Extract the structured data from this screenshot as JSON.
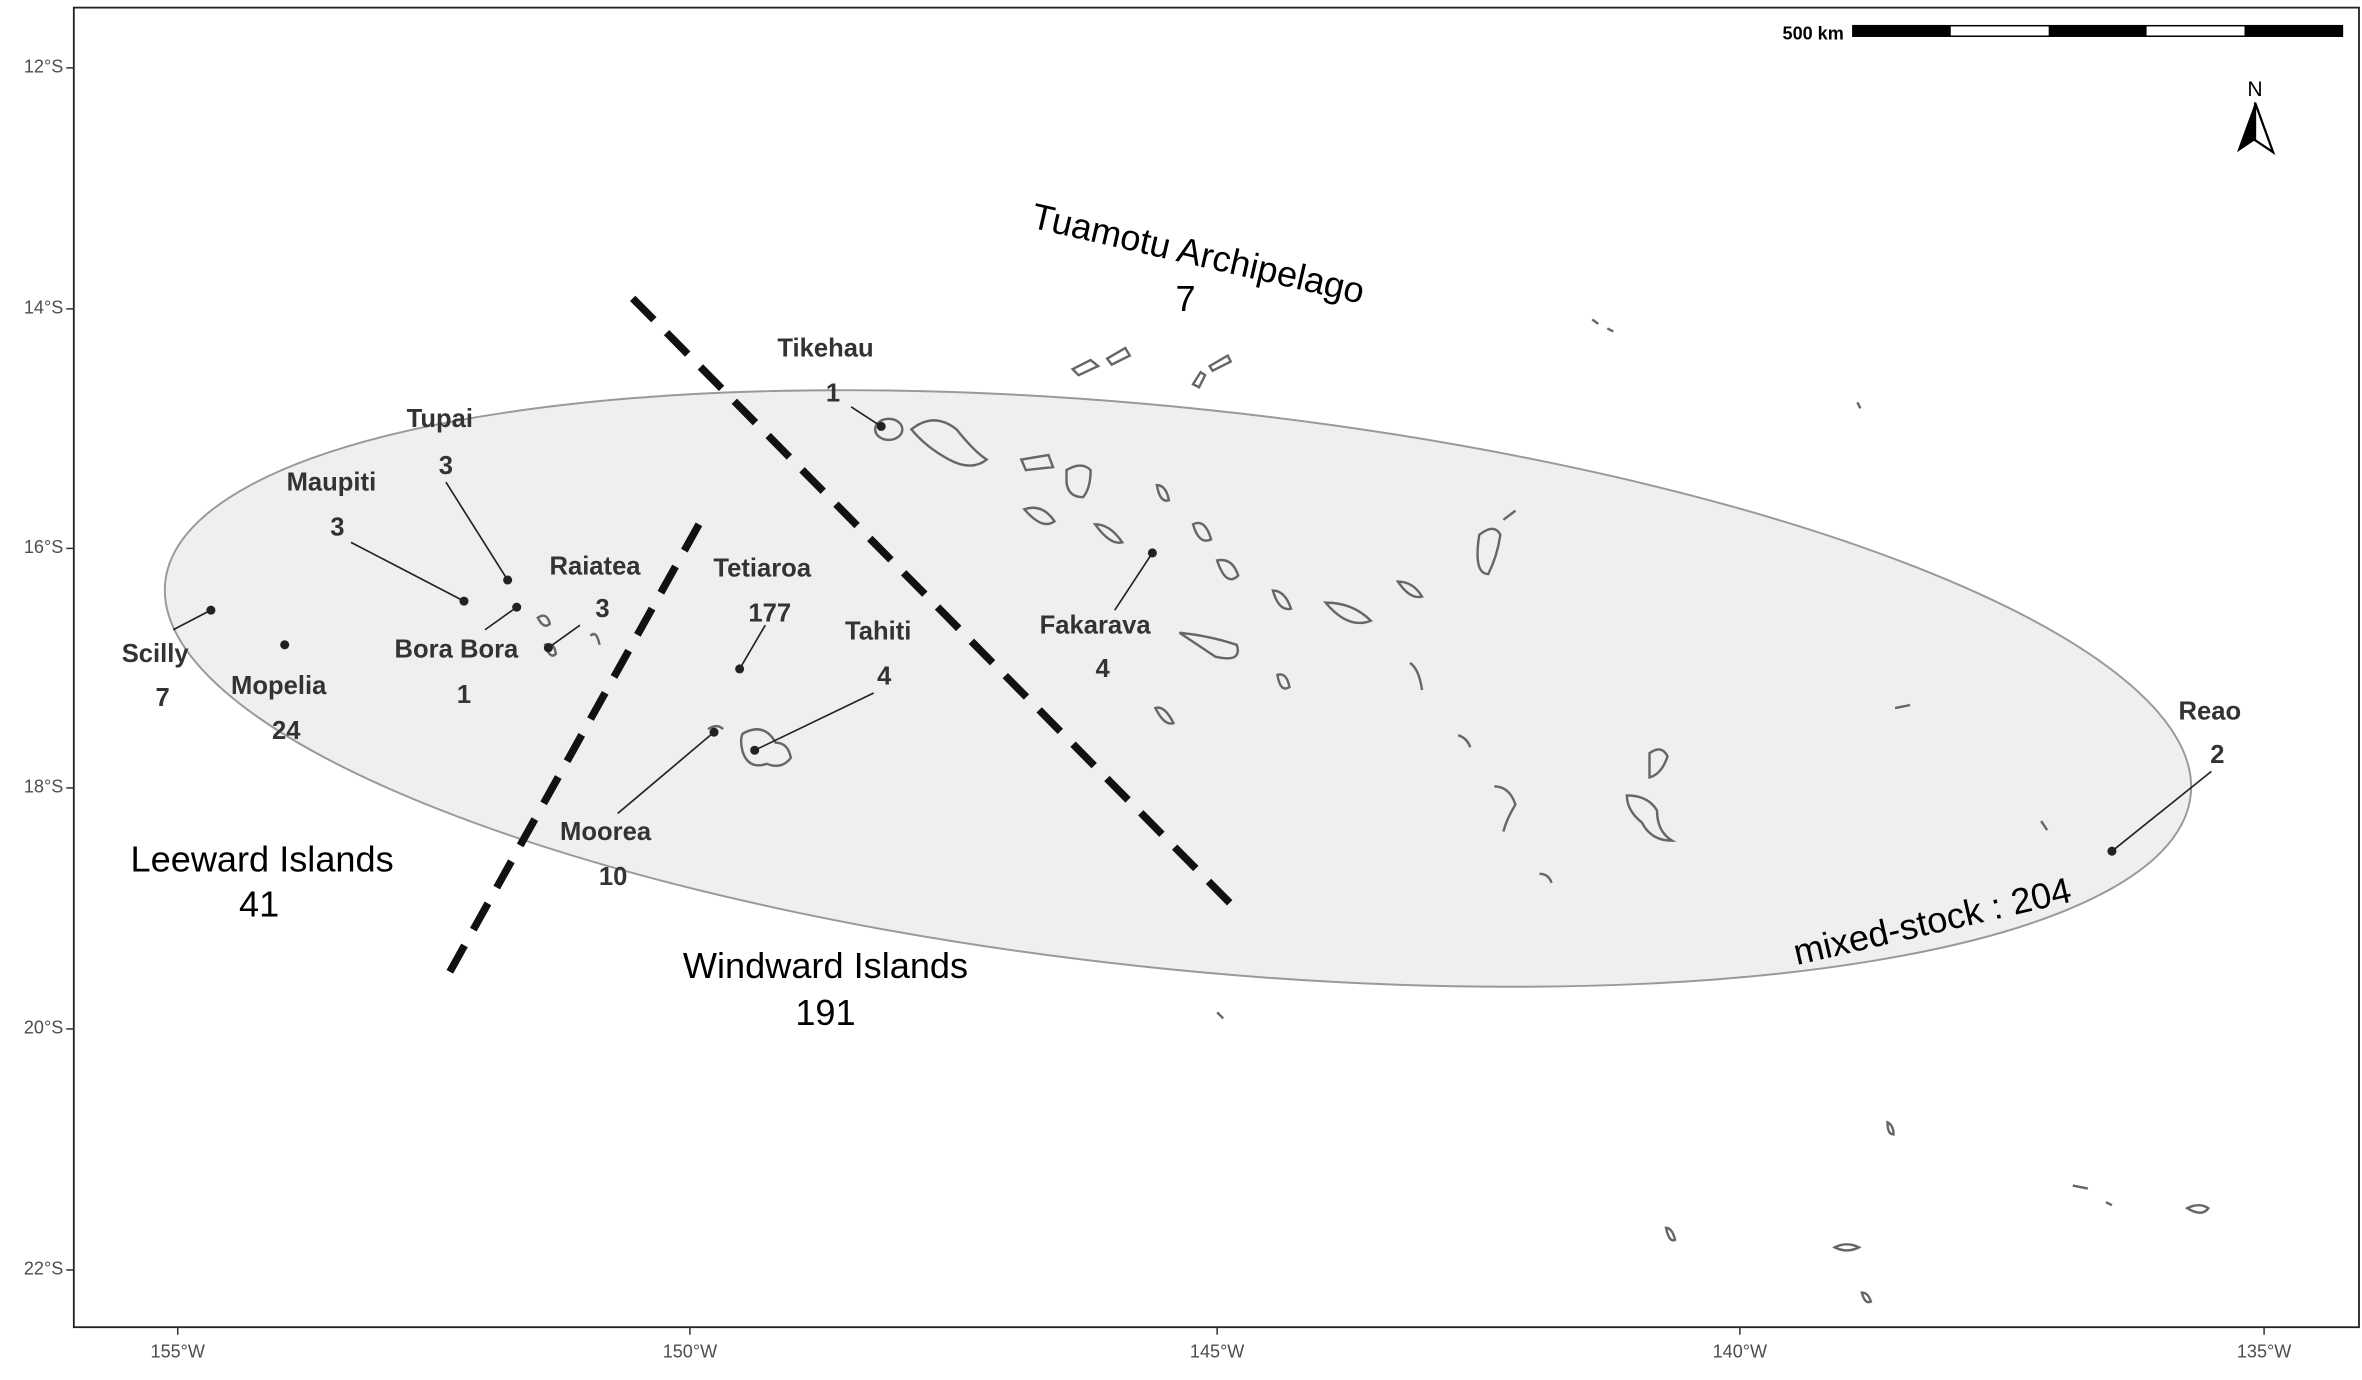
{
  "axes": {
    "x_ticks": [
      "155°W",
      "150°W",
      "145°W",
      "140°W",
      "135°W"
    ],
    "y_ticks": [
      "12°S",
      "14°S",
      "16°S",
      "18°S",
      "20°S",
      "22°S"
    ]
  },
  "scale_bar": "500 km",
  "north": "N",
  "regions": [
    {
      "name": "Tuamotu Archipelago",
      "count": 7
    },
    {
      "name": "Leeward Islands",
      "count": 41
    },
    {
      "name": "Windward Islands",
      "count": 191
    }
  ],
  "mixed_stock": {
    "label": "mixed-stock :",
    "count": 204
  },
  "islands": [
    {
      "name": "Tikehau",
      "count": 1
    },
    {
      "name": "Tupai",
      "count": 3
    },
    {
      "name": "Maupiti",
      "count": 3
    },
    {
      "name": "Raiatea",
      "count": 3
    },
    {
      "name": "Bora Bora",
      "count": 1
    },
    {
      "name": "Scilly",
      "count": 7
    },
    {
      "name": "Mopelia",
      "count": 24
    },
    {
      "name": "Tetiaroa",
      "count": 177
    },
    {
      "name": "Tahiti",
      "count": 4
    },
    {
      "name": "Moorea",
      "count": 10
    },
    {
      "name": "Fakarava",
      "count": 4
    },
    {
      "name": "Reao",
      "count": 2
    }
  ]
}
